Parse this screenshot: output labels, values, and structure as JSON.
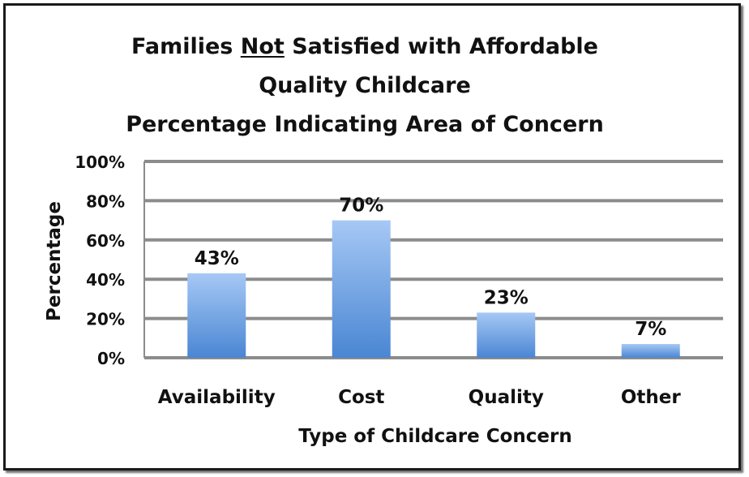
{
  "chart_data": {
    "type": "bar",
    "title": {
      "line1_pre": "Families ",
      "line1_underlined": "Not",
      "line1_post": " Satisfied with Affordable",
      "line2": "Quality Childcare",
      "line3": "Percentage Indicating Area of Concern"
    },
    "xlabel": "Type of Childcare Concern",
    "ylabel": "Percentage",
    "categories": [
      "Availability",
      "Cost",
      "Quality",
      "Other"
    ],
    "values": [
      43,
      70,
      23,
      7
    ],
    "data_labels": [
      "43%",
      "70%",
      "23%",
      "7%"
    ],
    "y_ticks": [
      "0%",
      "20%",
      "40%",
      "60%",
      "80%",
      "100%"
    ],
    "ylim": [
      0,
      100
    ],
    "grid": true,
    "legend": "none",
    "colors": {
      "bar_top": "#a6c8f5",
      "bar_bottom": "#4a86d3",
      "grid": "#8c8c8c"
    }
  }
}
